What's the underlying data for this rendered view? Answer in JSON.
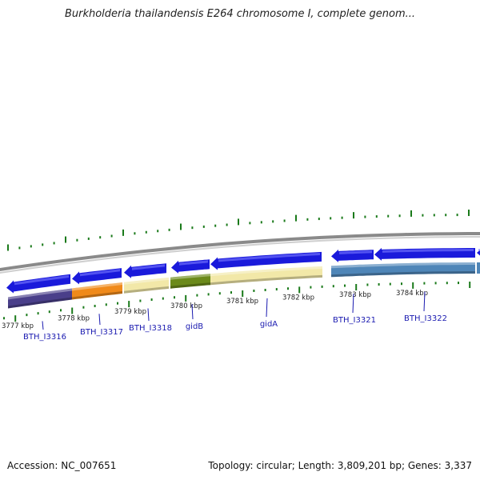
{
  "title": "Burkholderia thailandensis E264 chromosome I, complete genom...",
  "footer": {
    "accession": "Accession: NC_007651",
    "summary": "Topology: circular; Length: 3,809,201 bp; Genes: 3,337"
  },
  "colors": {
    "forward_strand": "#1a1adb",
    "backbone": "#8a8a8a",
    "ticks": "#1a7a1a",
    "gene_labels": "#1a1ab0"
  },
  "scale_labels": [
    "3777 kbp",
    "3778 kbp",
    "3779 kbp",
    "3780 kbp",
    "3781 kbp",
    "3782 kbp",
    "3783 kbp",
    "3784 kbp"
  ],
  "genes": [
    {
      "label": "BTH_I3316",
      "color": "#4a3f8a"
    },
    {
      "label": "BTH_I3317",
      "color": "#f08a1a"
    },
    {
      "label": "BTH_I3318",
      "color": "#f2e8a8"
    },
    {
      "label": "gidB",
      "color": "#6b8a1a"
    },
    {
      "label": "gidA",
      "color": "#f2e8a8"
    },
    {
      "label": "BTH_I3321",
      "color": "#4f86b8"
    },
    {
      "label": "BTH_I3322",
      "color": "#4f86b8"
    }
  ],
  "extra_genes": [
    {
      "color": "#4f86b8"
    }
  ]
}
